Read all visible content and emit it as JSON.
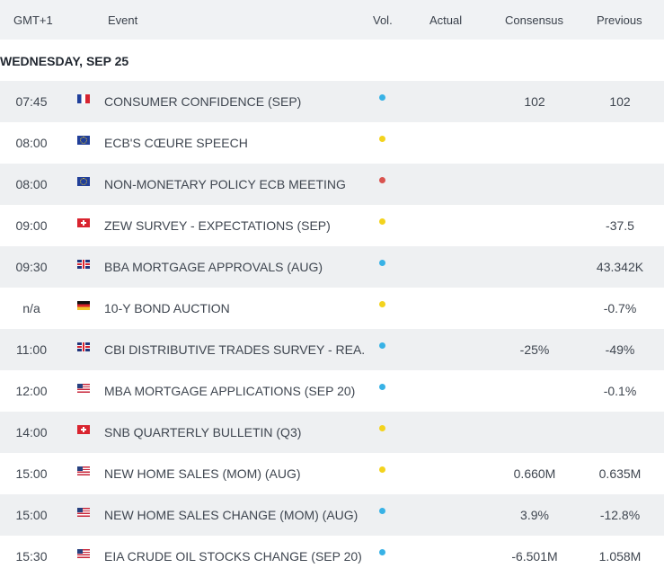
{
  "header": {
    "timezone": "GMT+1",
    "event": "Event",
    "vol": "Vol.",
    "actual": "Actual",
    "consensus": "Consensus",
    "previous": "Previous"
  },
  "day_title": "WEDNESDAY, SEP 25",
  "volatility_colors": {
    "low": "#38b2e6",
    "medium": "#f3d31d",
    "high": "#d9534f"
  },
  "rows": [
    {
      "time": "07:45",
      "flag": "fr",
      "flag_icon": "france-flag-icon",
      "event": "CONSUMER CONFIDENCE (SEP)",
      "vol": "low",
      "actual": "",
      "consensus": "102",
      "previous": "102"
    },
    {
      "time": "08:00",
      "flag": "eu",
      "flag_icon": "eu-flag-icon",
      "event": "ECB'S CŒURE SPEECH",
      "vol": "medium",
      "actual": "",
      "consensus": "",
      "previous": ""
    },
    {
      "time": "08:00",
      "flag": "eu",
      "flag_icon": "eu-flag-icon",
      "event": "NON-MONETARY POLICY ECB MEETING",
      "vol": "high",
      "actual": "",
      "consensus": "",
      "previous": ""
    },
    {
      "time": "09:00",
      "flag": "ch",
      "flag_icon": "switzerland-flag-icon",
      "event": "ZEW SURVEY - EXPECTATIONS (SEP)",
      "vol": "medium",
      "actual": "",
      "consensus": "",
      "previous": "-37.5"
    },
    {
      "time": "09:30",
      "flag": "gb",
      "flag_icon": "uk-flag-icon",
      "event": "BBA MORTGAGE APPROVALS (AUG)",
      "vol": "low",
      "actual": "",
      "consensus": "",
      "previous": "43.342K"
    },
    {
      "time": "n/a",
      "flag": "de",
      "flag_icon": "germany-flag-icon",
      "event": "10-Y BOND AUCTION",
      "vol": "medium",
      "actual": "",
      "consensus": "",
      "previous": "-0.7%"
    },
    {
      "time": "11:00",
      "flag": "gb",
      "flag_icon": "uk-flag-icon",
      "event": "CBI DISTRIBUTIVE TRADES SURVEY - REA...",
      "vol": "low",
      "actual": "",
      "consensus": "-25%",
      "previous": "-49%"
    },
    {
      "time": "12:00",
      "flag": "us",
      "flag_icon": "usa-flag-icon",
      "event": "MBA MORTGAGE APPLICATIONS (SEP 20)",
      "vol": "low",
      "actual": "",
      "consensus": "",
      "previous": "-0.1%"
    },
    {
      "time": "14:00",
      "flag": "ch",
      "flag_icon": "switzerland-flag-icon",
      "event": "SNB QUARTERLY BULLETIN (Q3)",
      "vol": "medium",
      "actual": "",
      "consensus": "",
      "previous": ""
    },
    {
      "time": "15:00",
      "flag": "us",
      "flag_icon": "usa-flag-icon",
      "event": "NEW HOME SALES (MOM) (AUG)",
      "vol": "medium",
      "actual": "",
      "consensus": "0.660M",
      "previous": "0.635M"
    },
    {
      "time": "15:00",
      "flag": "us",
      "flag_icon": "usa-flag-icon",
      "event": "NEW HOME SALES CHANGE (MOM) (AUG)",
      "vol": "low",
      "actual": "",
      "consensus": "3.9%",
      "previous": "-12.8%"
    },
    {
      "time": "15:30",
      "flag": "us",
      "flag_icon": "usa-flag-icon",
      "event": "EIA CRUDE OIL STOCKS CHANGE (SEP 20)",
      "vol": "low",
      "actual": "",
      "consensus": "-6.501M",
      "previous": "1.058M"
    }
  ]
}
